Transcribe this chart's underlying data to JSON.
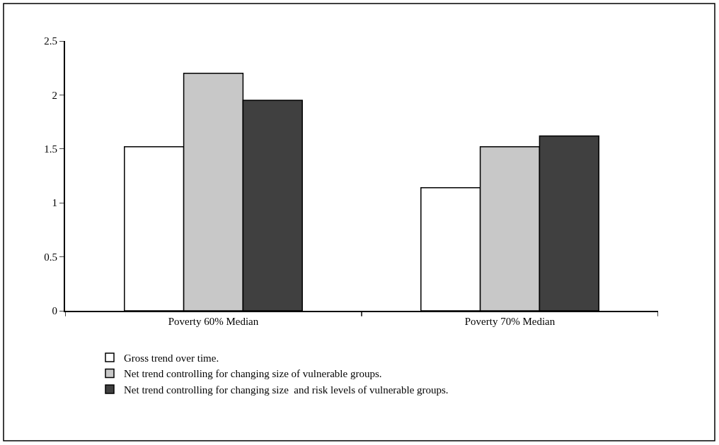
{
  "chart_data": {
    "type": "bar",
    "categories": [
      "Poverty 60% Median",
      "Poverty 70% Median"
    ],
    "series": [
      {
        "name": "Gross trend over time.",
        "color": "#ffffff",
        "values": [
          1.52,
          1.14
        ]
      },
      {
        "name": "Net trend controlling for changing size of vulnerable groups.",
        "color": "#c8c8c8",
        "values": [
          2.2,
          1.52
        ]
      },
      {
        "name": "Net trend controlling for changing size  and risk levels of vulnerable groups.",
        "color": "#404040",
        "values": [
          1.95,
          1.62
        ]
      }
    ],
    "ylim": [
      0,
      2.5
    ],
    "yticks": [
      0,
      0.5,
      1,
      1.5,
      2,
      2.5
    ],
    "legend": "bottom"
  }
}
